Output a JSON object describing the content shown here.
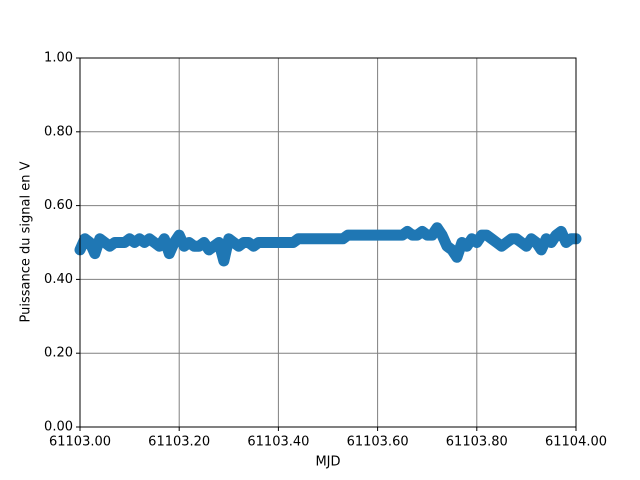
{
  "chart_data": {
    "type": "line",
    "xlabel": "MJD",
    "ylabel": "Puissance du signal en V",
    "x": [
      61103.0,
      61103.01,
      61103.02,
      61103.03,
      61103.04,
      61103.05,
      61103.06,
      61103.07,
      61103.08,
      61103.09,
      61103.1,
      61103.11,
      61103.12,
      61103.13,
      61103.14,
      61103.15,
      61103.16,
      61103.17,
      61103.18,
      61103.19,
      61103.2,
      61103.21,
      61103.22,
      61103.23,
      61103.24,
      61103.25,
      61103.26,
      61103.27,
      61103.28,
      61103.29,
      61103.3,
      61103.31,
      61103.32,
      61103.33,
      61103.34,
      61103.35,
      61103.36,
      61103.37,
      61103.38,
      61103.39,
      61103.4,
      61103.41,
      61103.42,
      61103.43,
      61103.44,
      61103.45,
      61103.46,
      61103.47,
      61103.48,
      61103.49,
      61103.5,
      61103.51,
      61103.52,
      61103.53,
      61103.54,
      61103.55,
      61103.56,
      61103.57,
      61103.58,
      61103.59,
      61103.6,
      61103.61,
      61103.62,
      61103.63,
      61103.64,
      61103.65,
      61103.66,
      61103.67,
      61103.68,
      61103.69,
      61103.7,
      61103.71,
      61103.72,
      61103.73,
      61103.74,
      61103.75,
      61103.76,
      61103.77,
      61103.78,
      61103.79,
      61103.8,
      61103.81,
      61103.82,
      61103.83,
      61103.84,
      61103.85,
      61103.86,
      61103.87,
      61103.88,
      61103.89,
      61103.9,
      61103.91,
      61103.92,
      61103.93,
      61103.94,
      61103.95,
      61103.96,
      61103.97,
      61103.98,
      61103.99,
      61104.0
    ],
    "series": [
      {
        "color": "#1f77b4",
        "values": [
          0.48,
          0.51,
          0.5,
          0.47,
          0.51,
          0.5,
          0.49,
          0.5,
          0.5,
          0.5,
          0.51,
          0.5,
          0.51,
          0.5,
          0.51,
          0.5,
          0.49,
          0.51,
          0.47,
          0.5,
          0.52,
          0.49,
          0.5,
          0.49,
          0.49,
          0.5,
          0.48,
          0.49,
          0.5,
          0.45,
          0.51,
          0.5,
          0.49,
          0.5,
          0.5,
          0.49,
          0.5,
          0.5,
          0.5,
          0.5,
          0.5,
          0.5,
          0.5,
          0.5,
          0.51,
          0.51,
          0.51,
          0.51,
          0.51,
          0.51,
          0.51,
          0.51,
          0.51,
          0.51,
          0.52,
          0.52,
          0.52,
          0.52,
          0.52,
          0.52,
          0.52,
          0.52,
          0.52,
          0.52,
          0.52,
          0.52,
          0.53,
          0.52,
          0.52,
          0.53,
          0.52,
          0.52,
          0.54,
          0.52,
          0.49,
          0.48,
          0.46,
          0.5,
          0.49,
          0.51,
          0.5,
          0.52,
          0.52,
          0.51,
          0.5,
          0.49,
          0.5,
          0.51,
          0.51,
          0.5,
          0.49,
          0.51,
          0.5,
          0.48,
          0.51,
          0.5,
          0.52,
          0.53,
          0.5,
          0.51,
          0.51
        ]
      }
    ],
    "xlim": [
      61103.0,
      61104.0
    ],
    "xticks": [
      {
        "value": 61103.0,
        "label": "61103.00"
      },
      {
        "value": 61103.2,
        "label": "61103.20"
      },
      {
        "value": 61103.4,
        "label": "61103.40"
      },
      {
        "value": 61103.6,
        "label": "61103.60"
      },
      {
        "value": 61103.8,
        "label": "61103.80"
      },
      {
        "value": 61104.0,
        "label": "61104.00"
      }
    ],
    "ylim": [
      0,
      1
    ],
    "yticks": [
      {
        "value": 0,
        "label": "0.00"
      },
      {
        "value": 0.2,
        "label": "0.20"
      },
      {
        "value": 0.4,
        "label": "0.40"
      },
      {
        "value": 0.6,
        "label": "0.60"
      },
      {
        "value": 0.8,
        "label": "0.80"
      },
      {
        "value": 1,
        "label": "1.00"
      }
    ],
    "grid": true
  }
}
